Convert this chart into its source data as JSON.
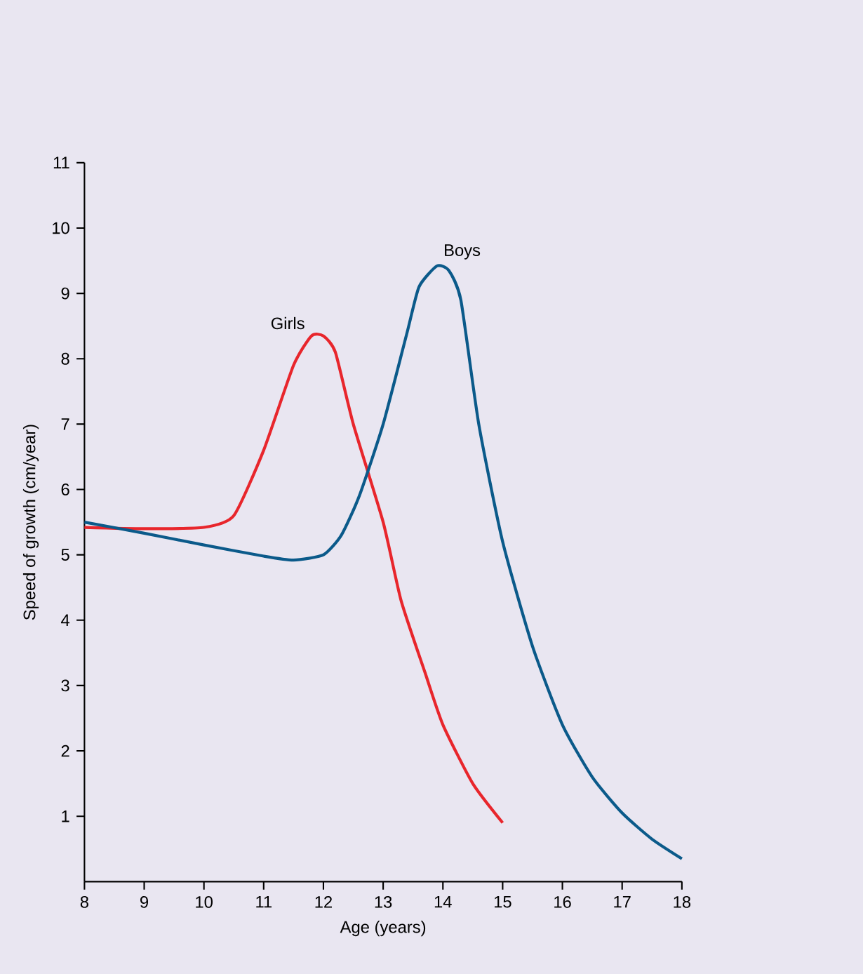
{
  "chart_data": {
    "type": "line",
    "xlabel": "Age (years)",
    "ylabel": "Speed of growth (cm/year)",
    "xlim": [
      8,
      18
    ],
    "ylim": [
      0,
      11
    ],
    "xticks": [
      8,
      9,
      10,
      11,
      12,
      13,
      14,
      15,
      16,
      17,
      18
    ],
    "yticks": [
      1,
      2,
      3,
      4,
      5,
      6,
      7,
      8,
      9,
      10,
      11
    ],
    "grid": false,
    "legend": false,
    "marker": "none",
    "line_style": "solid",
    "series": [
      {
        "name": "Girls",
        "color": "#e8262c",
        "x": [
          8,
          9,
          10,
          10.5,
          11,
          11.5,
          11.8,
          12,
          12.2,
          12.5,
          13,
          13.3,
          13.7,
          14,
          14.5,
          15
        ],
        "values": [
          5.42,
          5.4,
          5.42,
          5.6,
          6.6,
          7.9,
          8.35,
          8.35,
          8.1,
          7.0,
          5.5,
          4.3,
          3.2,
          2.4,
          1.5,
          0.9
        ]
      },
      {
        "name": "Boys",
        "color": "#0b5a8a",
        "x": [
          8,
          9,
          10,
          11,
          11.5,
          12,
          12.3,
          12.6,
          13,
          13.4,
          13.6,
          13.9,
          14.1,
          14.3,
          14.6,
          15,
          15.5,
          16,
          16.5,
          17,
          17.5,
          18
        ],
        "values": [
          5.5,
          5.33,
          5.15,
          4.98,
          4.92,
          5.0,
          5.3,
          5.9,
          7.0,
          8.4,
          9.1,
          9.42,
          9.35,
          8.9,
          7.0,
          5.2,
          3.6,
          2.4,
          1.6,
          1.05,
          0.65,
          0.35
        ]
      }
    ]
  }
}
